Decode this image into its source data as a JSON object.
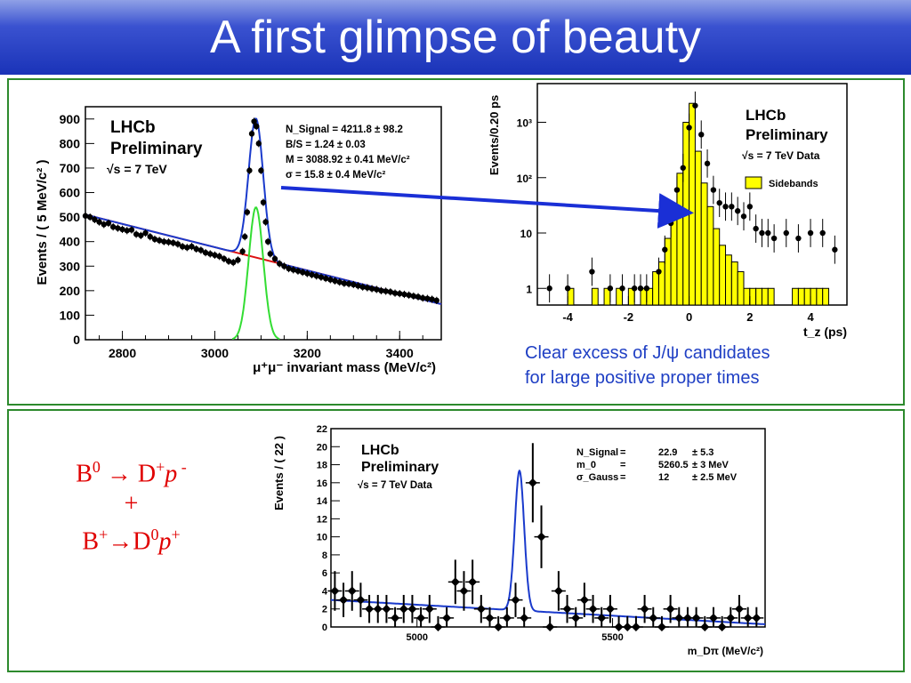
{
  "title": "A first glimpse of beauty",
  "caption": {
    "line1": "Clear excess of J/ψ candidates",
    "line2": "for large positive  proper times"
  },
  "decays": {
    "line1_a": "B",
    "line1_b": "0",
    "line1_c": " → D",
    "line1_d": "+",
    "line1_e": "p",
    "line1_f": " -",
    "plus": "+",
    "line3_a": "B",
    "line3_b": "+",
    "line3_c": "→D",
    "line3_d": "0",
    "line3_e": "p",
    "line3_f": "+"
  },
  "chart_data": [
    {
      "type": "scatter",
      "id": "jpsi-mass",
      "experiment": "LHCb",
      "status": "Preliminary",
      "energy": "√s = 7 TeV",
      "xlabel": "μ⁺μ⁻ invariant mass (MeV/c²)",
      "ylabel": "Events / ( 5 MeV/c² )",
      "xlim": [
        2720,
        3490
      ],
      "ylim": [
        0,
        950
      ],
      "xticks": [
        2800,
        3000,
        3200,
        3400
      ],
      "yticks": [
        0,
        100,
        200,
        300,
        400,
        500,
        600,
        700,
        800,
        900
      ],
      "fit_text": [
        "N_Signal = 4211.8 ± 98.2",
        "B/S = 1.24 ± 0.03",
        "M = 3088.92 ±  0.41 MeV/c²",
        "σ =   15.8 ±  0.4  MeV/c²"
      ],
      "signal_mean": 3089,
      "signal_sigma": 15.8,
      "signal_peak": 540,
      "background_line": [
        [
          2720,
          510
        ],
        [
          3490,
          145
        ]
      ],
      "colors": {
        "total_fit": "#1a3acc",
        "signal": "#33dd33",
        "background": "#dd1111"
      },
      "x": [
        2720,
        2730,
        2740,
        2750,
        2760,
        2770,
        2780,
        2790,
        2800,
        2810,
        2820,
        2830,
        2840,
        2850,
        2860,
        2870,
        2880,
        2890,
        2900,
        2910,
        2920,
        2930,
        2940,
        2950,
        2960,
        2970,
        2980,
        2990,
        3000,
        3010,
        3020,
        3030,
        3040,
        3050,
        3060,
        3065,
        3070,
        3075,
        3080,
        3085,
        3090,
        3095,
        3100,
        3105,
        3110,
        3115,
        3120,
        3130,
        3140,
        3150,
        3160,
        3170,
        3180,
        3190,
        3200,
        3210,
        3220,
        3230,
        3240,
        3250,
        3260,
        3270,
        3280,
        3290,
        3300,
        3310,
        3320,
        3330,
        3340,
        3350,
        3360,
        3370,
        3380,
        3390,
        3400,
        3410,
        3420,
        3430,
        3440,
        3450,
        3460,
        3470,
        3480
      ],
      "y": [
        505,
        500,
        490,
        480,
        470,
        475,
        460,
        455,
        450,
        445,
        448,
        430,
        425,
        435,
        420,
        410,
        405,
        400,
        398,
        395,
        390,
        380,
        376,
        380,
        370,
        365,
        355,
        350,
        345,
        340,
        330,
        320,
        315,
        325,
        360,
        420,
        520,
        690,
        840,
        890,
        870,
        800,
        690,
        560,
        480,
        400,
        350,
        330,
        310,
        300,
        290,
        285,
        280,
        275,
        270,
        265,
        260,
        255,
        250,
        245,
        240,
        235,
        230,
        228,
        225,
        220,
        215,
        212,
        208,
        205,
        200,
        198,
        195,
        190,
        188,
        185,
        182,
        178,
        175,
        170,
        168,
        165,
        160
      ]
    },
    {
      "type": "bar",
      "id": "proper-time",
      "experiment": "LHCb",
      "status": "Preliminary",
      "energy": "√s = 7 TeV Data",
      "legend": [
        "Sidebands"
      ],
      "log_y": true,
      "xlabel": "t_z (ps)",
      "ylabel": "Events/0.20 ps",
      "xlim": [
        -5,
        5.2
      ],
      "ylim": [
        0.5,
        5000
      ],
      "xticks": [
        -4,
        -2,
        0,
        2,
        4
      ],
      "yticks": [
        "1",
        "10",
        "10²",
        "10³"
      ],
      "colors": {
        "sideband_fill": "#ffff00",
        "data_points": "#000000"
      },
      "sideband_bins_lo": [
        -5.0,
        -4.8,
        -4.6,
        -4.4,
        -4.2,
        -4.0,
        -3.8,
        -3.6,
        -3.4,
        -3.2,
        -3.0,
        -2.8,
        -2.6,
        -2.4,
        -2.2,
        -2.0,
        -1.8,
        -1.6,
        -1.4,
        -1.2,
        -1.0,
        -0.8,
        -0.6,
        -0.4,
        -0.2,
        0.0,
        0.2,
        0.4,
        0.6,
        0.8,
        1.0,
        1.2,
        1.4,
        1.6,
        1.8,
        2.0,
        2.2,
        2.4,
        2.6,
        2.8,
        3.0,
        3.2,
        3.4,
        3.6,
        3.8,
        4.0,
        4.2,
        4.4,
        4.6,
        4.8
      ],
      "sideband_values": [
        0,
        0,
        0,
        0,
        0,
        1,
        0,
        0,
        0,
        1,
        0,
        1,
        0,
        1,
        0,
        1,
        0,
        1,
        1,
        2,
        3,
        8,
        30,
        120,
        1000,
        2200,
        300,
        80,
        30,
        12,
        6,
        4,
        3,
        2,
        1,
        1,
        1,
        1,
        1,
        0,
        0,
        0,
        1,
        1,
        1,
        1,
        1,
        1,
        0,
        0
      ],
      "x": [
        -4.6,
        -4.0,
        -3.2,
        -2.6,
        -2.2,
        -1.8,
        -1.6,
        -1.4,
        -1.0,
        -0.8,
        -0.6,
        -0.4,
        -0.2,
        0.0,
        0.2,
        0.4,
        0.6,
        0.8,
        1.0,
        1.2,
        1.4,
        1.6,
        1.8,
        2.0,
        2.2,
        2.4,
        2.6,
        2.8,
        3.2,
        3.6,
        4.0,
        4.4,
        4.8
      ],
      "y": [
        1,
        1,
        2,
        1,
        1,
        1,
        1,
        1,
        2,
        5,
        15,
        60,
        150,
        800,
        2000,
        600,
        180,
        60,
        35,
        30,
        30,
        25,
        20,
        30,
        12,
        10,
        10,
        8,
        10,
        8,
        10,
        10,
        5
      ]
    },
    {
      "type": "scatter",
      "id": "b-mass",
      "experiment": "LHCb",
      "status": "Preliminary",
      "energy": "√s = 7 TeV Data",
      "xlabel": "m_Dπ (MeV/c²)",
      "ylabel": "Events / ( 22 )",
      "xlim": [
        4780,
        5890
      ],
      "ylim": [
        0,
        22
      ],
      "xticks": [
        5000,
        5500
      ],
      "yticks": [
        0,
        2,
        4,
        6,
        8,
        10,
        12,
        14,
        16,
        18,
        20,
        22
      ],
      "fit_text": [
        [
          "N_Signal",
          "=",
          "22.9",
          "± 5.3"
        ],
        [
          "m_0",
          "=",
          "5260.5",
          "± 3 MeV"
        ],
        [
          "σ_Gauss",
          "=",
          "12",
          "± 2.5 MeV"
        ]
      ],
      "signal_mean": 5262,
      "signal_sigma": 12,
      "signal_peak": 15.5,
      "background_line": [
        [
          4780,
          3
        ],
        [
          5890,
          0.3
        ]
      ],
      "colors": {
        "fit": "#1a3acc"
      },
      "x": [
        4790,
        4812,
        4834,
        4856,
        4878,
        4900,
        4922,
        4944,
        4966,
        4988,
        5010,
        5032,
        5054,
        5076,
        5098,
        5120,
        5142,
        5164,
        5186,
        5208,
        5230,
        5252,
        5274,
        5296,
        5318,
        5340,
        5362,
        5384,
        5406,
        5428,
        5450,
        5472,
        5494,
        5516,
        5538,
        5560,
        5582,
        5604,
        5626,
        5648,
        5670,
        5692,
        5714,
        5736,
        5758,
        5780,
        5802,
        5824,
        5846,
        5868
      ],
      "y": [
        4,
        3,
        4,
        3,
        2,
        2,
        2,
        1,
        2,
        2,
        1,
        2,
        0,
        1,
        5,
        4,
        5,
        2,
        1,
        0,
        1,
        3,
        1,
        16,
        10,
        0,
        4,
        2,
        1,
        3,
        2,
        1,
        2,
        0,
        0,
        0,
        2,
        1,
        0,
        2,
        1,
        1,
        1,
        0,
        1,
        0,
        1,
        2,
        1,
        1
      ]
    }
  ]
}
